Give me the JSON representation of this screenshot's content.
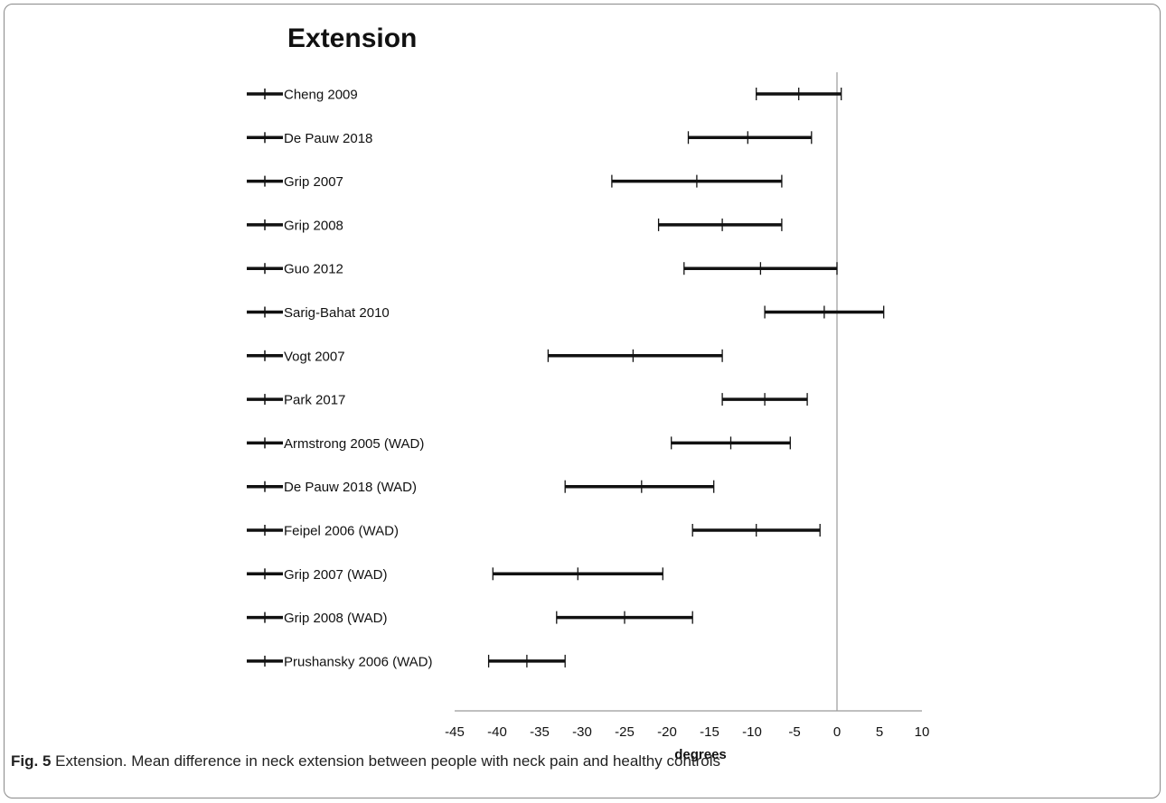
{
  "figure": {
    "caption_label": "Fig. 5",
    "caption_text": " Extension. Mean difference in neck extension between people with neck pain and healthy controls"
  },
  "chart_data": {
    "type": "forest",
    "title": "Extension",
    "xlabel": "degrees",
    "xlim": [
      -45,
      10
    ],
    "xticks": [
      -45,
      -40,
      -35,
      -30,
      -25,
      -20,
      -15,
      -10,
      -5,
      0,
      5,
      10
    ],
    "reference_line": 0,
    "grid": false,
    "legend": "left",
    "studies": [
      {
        "label": "Cheng 2009",
        "mean": -4.5,
        "low": -9.5,
        "high": 0.5
      },
      {
        "label": "De Pauw 2018",
        "mean": -10.5,
        "low": -17.5,
        "high": -3.0
      },
      {
        "label": "Grip  2007",
        "mean": -16.5,
        "low": -26.5,
        "high": -6.5
      },
      {
        "label": "Grip  2008",
        "mean": -13.5,
        "low": -21.0,
        "high": -6.5
      },
      {
        "label": "Guo 2012",
        "mean": -9.0,
        "low": -18.0,
        "high": 0.0
      },
      {
        "label": "Sarig-Bahat 2010",
        "mean": -1.5,
        "low": -8.5,
        "high": 5.5
      },
      {
        "label": "Vogt 2007",
        "mean": -24.0,
        "low": -34.0,
        "high": -13.5
      },
      {
        "label": "Park 2017",
        "mean": -8.5,
        "low": -13.5,
        "high": -3.5
      },
      {
        "label": "Armstrong 2005 (WAD)",
        "mean": -12.5,
        "low": -19.5,
        "high": -5.5
      },
      {
        "label": "De Pauw 2018 (WAD)",
        "mean": -23.0,
        "low": -32.0,
        "high": -14.5
      },
      {
        "label": "Feipel 2006  (WAD)",
        "mean": -9.5,
        "low": -17.0,
        "high": -2.0
      },
      {
        "label": "Grip  2007 (WAD)",
        "mean": -30.5,
        "low": -40.5,
        "high": -20.5
      },
      {
        "label": "Grip  2008 (WAD)",
        "mean": -25.0,
        "low": -33.0,
        "high": -17.0
      },
      {
        "label": "Prushansky 2006 (WAD)",
        "mean": -36.5,
        "low": -41.0,
        "high": -32.0
      }
    ]
  }
}
